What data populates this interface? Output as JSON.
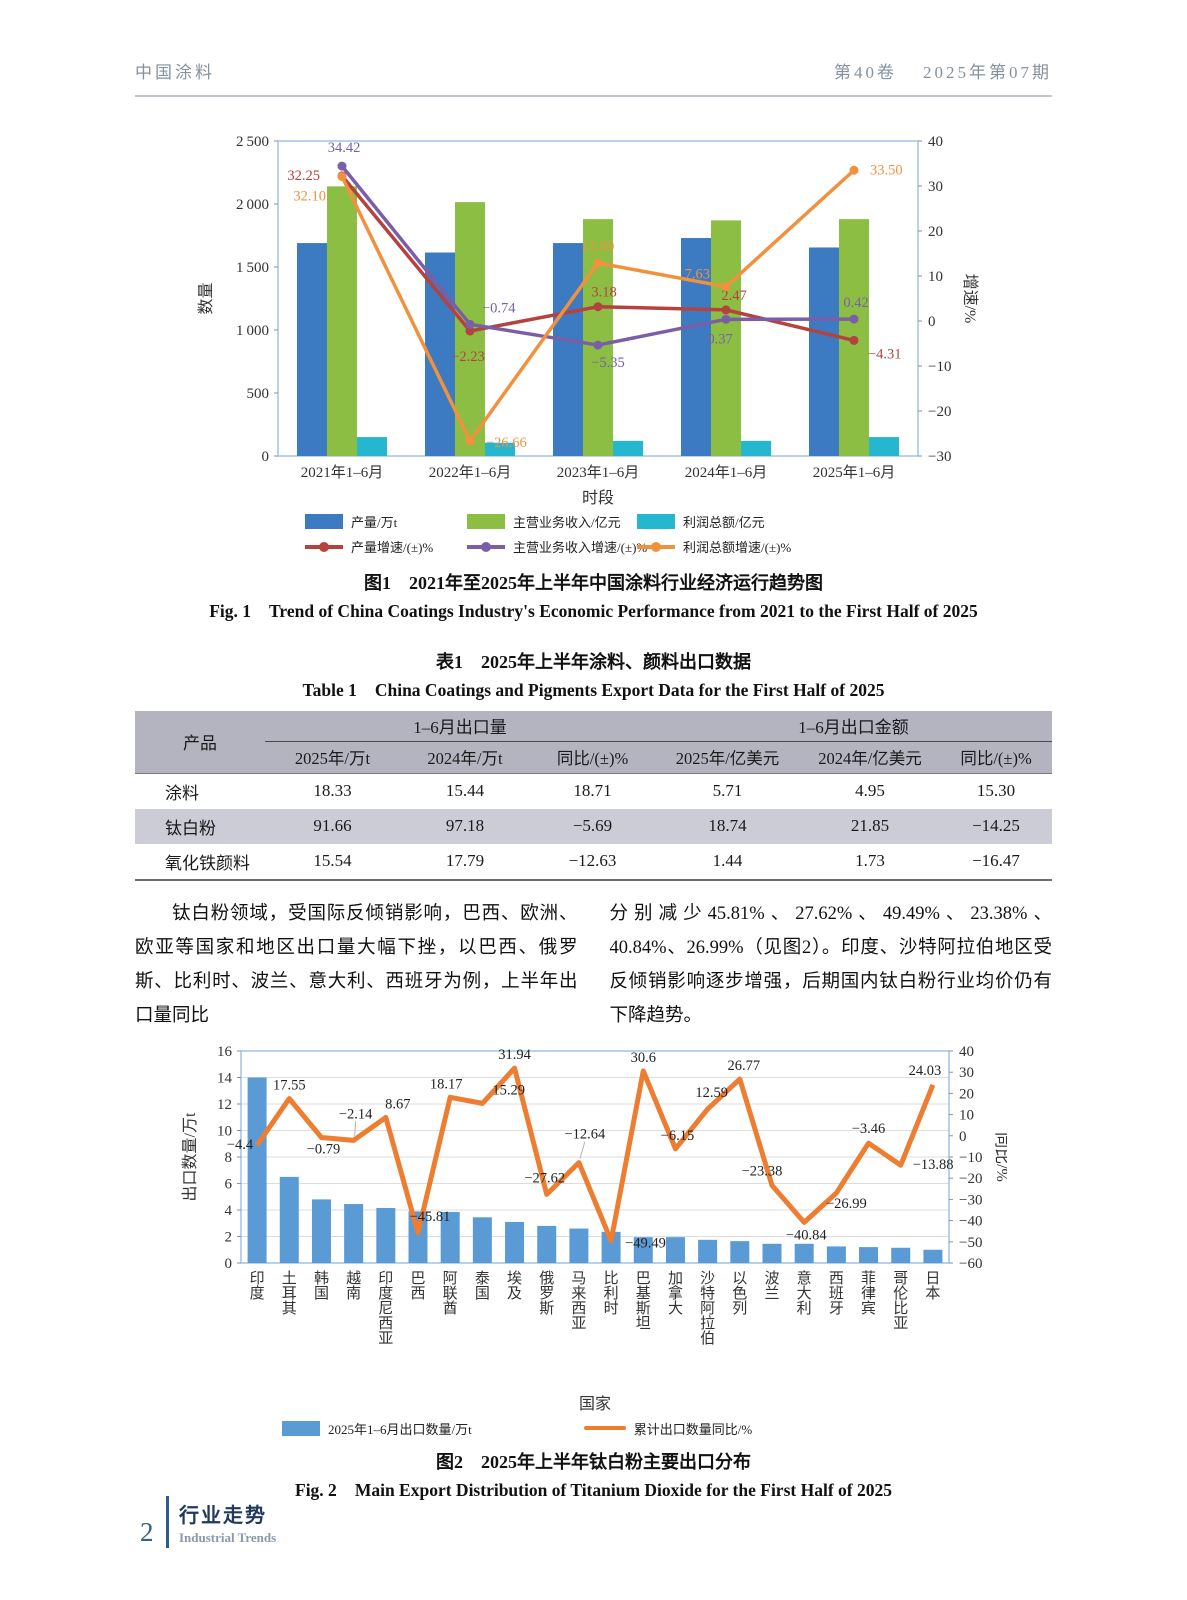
{
  "page_header": {
    "journal": "中国涂料",
    "volume": "第40卷",
    "issue": "2025年第07期"
  },
  "chart_data": [
    {
      "id": "fig1",
      "type": "bar+line",
      "title": "2021年至2025年上半年中国涂料行业经济运行趋势图",
      "categories": [
        "2021年1–6月",
        "2022年1–6月",
        "2023年1–6月",
        "2024年1–6月",
        "2025年1–6月"
      ],
      "x_label": "时段",
      "left_axis": {
        "label": "数量",
        "min": 0,
        "max": 2500,
        "step": 500
      },
      "right_axis": {
        "label": "增速/%",
        "min": -30,
        "max": 40,
        "step": 10
      },
      "bar_series": [
        {
          "name": "产量/万t",
          "color": "#3c7ac2",
          "values": [
            1690,
            1615,
            1690,
            1730,
            1655
          ]
        },
        {
          "name": "主营业务收入/亿元",
          "color": "#8cbe44",
          "values": [
            2140,
            2015,
            1880,
            1870,
            1880
          ]
        },
        {
          "name": "利润总额/亿元",
          "color": "#26b7d0",
          "values": [
            150,
            105,
            120,
            120,
            150
          ]
        }
      ],
      "line_series": [
        {
          "name": "产量增速/(±)%",
          "color": "#b5423f",
          "values": [
            "32.25",
            "-2.23",
            "3.18",
            "2.47",
            "-4.31"
          ]
        },
        {
          "name": "主营业务收入增速/(±)%",
          "color": "#7a5fa8",
          "values": [
            "34.42",
            "-0.74",
            "-5.35",
            "0.37",
            "0.42"
          ]
        },
        {
          "name": "利润总额增速/(±)%",
          "color": "#f2913d",
          "values": [
            "32.10",
            "-26.66",
            "12.89",
            "7.63",
            "33.50"
          ]
        }
      ],
      "legend_position": "bottom",
      "grid": false
    },
    {
      "id": "fig2",
      "type": "bar+line",
      "title": "2025年上半年钛白粉主要出口分布",
      "categories": [
        "印度",
        "土耳其",
        "韩国",
        "越南",
        "印度尼西亚",
        "巴西",
        "阿联酋",
        "泰国",
        "埃及",
        "俄罗斯",
        "马来西亚",
        "比利时",
        "巴基斯坦",
        "加拿大",
        "沙特阿拉伯",
        "以色列",
        "波兰",
        "意大利",
        "西班牙",
        "菲律宾",
        "哥伦比亚",
        "日本"
      ],
      "x_label": "国家",
      "left_axis": {
        "label": "出口数量/万t",
        "min": 0,
        "max": 16,
        "step": 2
      },
      "right_axis": {
        "label": "同比/%",
        "min": -60,
        "max": 40,
        "step": 10
      },
      "bar_series": [
        {
          "name": "2025年1–6月出口数量/万t",
          "color": "#5b9bd5",
          "values": [
            14.0,
            6.5,
            4.8,
            4.45,
            4.15,
            3.9,
            3.85,
            3.45,
            3.1,
            2.8,
            2.6,
            2.35,
            1.95,
            1.95,
            1.75,
            1.65,
            1.45,
            1.45,
            1.25,
            1.2,
            1.15,
            1.0
          ]
        }
      ],
      "line_series": [
        {
          "name": "累计出口数量同比/%",
          "color": "#ed7d31",
          "values": [
            "-4.4",
            "17.55",
            "-0.79",
            "-2.14",
            "8.67",
            "-45.81",
            "18.17",
            "15.29",
            "31.94",
            "-27.62",
            "-12.64",
            "-49.49",
            "30.6",
            "-6.15",
            "12.59",
            "26.77",
            "-23.38",
            "-40.84",
            "-26.99",
            "-3.46",
            "-13.88",
            "24.03"
          ]
        }
      ],
      "legend_position": "bottom",
      "grid": true
    }
  ],
  "fig1": {
    "label_zh": "图1",
    "title_zh": "2021年至2025年上半年中国涂料行业经济运行趋势图",
    "label_en": "Fig. 1",
    "title_en": "Trend of China Coatings Industry's Economic Performance from 2021 to the First Half of 2025"
  },
  "table1": {
    "label_zh": "表1",
    "title_zh": "2025年上半年涂料、颜料出口数据",
    "label_en": "Table 1",
    "title_en": "China Coatings and Pigments Export Data for the First Half of 2025",
    "col_product": "产品",
    "group1": "1–6月出口量",
    "group2": "1–6月出口金额",
    "subheads": [
      "2025年/万t",
      "2024年/万t",
      "同比/(±)%",
      "2025年/亿美元",
      "2024年/亿美元",
      "同比/(±)%"
    ],
    "rows": [
      {
        "product": "涂料",
        "cells": [
          "18.33",
          "15.44",
          "18.71",
          "5.71",
          "4.95",
          "15.30"
        ]
      },
      {
        "product": "钛白粉",
        "cells": [
          "91.66",
          "97.18",
          "−5.69",
          "18.74",
          "21.85",
          "−14.25"
        ]
      },
      {
        "product": "氧化铁颜料",
        "cells": [
          "15.54",
          "17.79",
          "−12.63",
          "1.44",
          "1.73",
          "−16.47"
        ]
      }
    ]
  },
  "body": {
    "left_col": "钛白粉领域，受国际反倾销影响，巴西、欧洲、欧亚等国家和地区出口量大幅下挫，以巴西、俄罗斯、比利时、波兰、意大利、西班牙为例，上半年出口量同比",
    "right_col": "分别减少45.81%、27.62%、49.49%、23.38%、40.84%、26.99%（见图2）。印度、沙特阿拉伯地区受反倾销影响逐步增强，后期国内钛白粉行业均价仍有下降趋势。"
  },
  "fig2": {
    "label_zh": "图2",
    "title_zh": "2025年上半年钛白粉主要出口分布",
    "label_en": "Fig. 2",
    "title_en": "Main Export Distribution of Titanium Dioxide for the First Half of 2025"
  },
  "footer": {
    "page_number": "2",
    "section_zh": "行业走势",
    "section_en": "Industrial Trends"
  }
}
